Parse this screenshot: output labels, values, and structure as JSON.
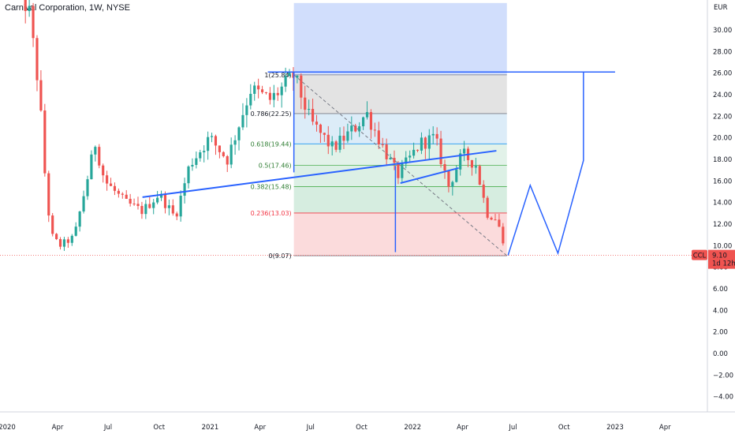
{
  "title": "Carnival Corporation, 1W, NYSE",
  "chart_data": {
    "type": "candlestick",
    "currency_label": "EUR",
    "y_range": [
      -5,
      32.5
    ],
    "y_ticks": [
      "30.00",
      "28.00",
      "26.00",
      "24.00",
      "22.00",
      "20.00",
      "18.00",
      "16.00",
      "14.00",
      "12.00",
      "10.00",
      "8.00",
      "6.00",
      "4.00",
      "2.00",
      "0.00",
      "−2.00",
      "−4.00"
    ],
    "x_range": [
      "2020-01-01",
      "2023-06-15"
    ],
    "x_ticks": [
      {
        "date": "2020-01-01",
        "label": "2020"
      },
      {
        "date": "2020-04-01",
        "label": "Apr"
      },
      {
        "date": "2020-07-01",
        "label": "Jul"
      },
      {
        "date": "2020-10-01",
        "label": "Oct"
      },
      {
        "date": "2021-01-01",
        "label": "2021"
      },
      {
        "date": "2021-04-01",
        "label": "Apr"
      },
      {
        "date": "2021-07-01",
        "label": "Jul"
      },
      {
        "date": "2021-10-01",
        "label": "Oct"
      },
      {
        "date": "2022-01-01",
        "label": "2022"
      },
      {
        "date": "2022-04-01",
        "label": "Apr"
      },
      {
        "date": "2022-07-01",
        "label": "Jul"
      },
      {
        "date": "2022-10-01",
        "label": "Oct"
      },
      {
        "date": "2023-01-01",
        "label": "2023"
      },
      {
        "date": "2023-04-01",
        "label": "Apr"
      }
    ],
    "close_anchors": [
      {
        "date": "2020-01-20",
        "value": 34.5
      },
      {
        "date": "2020-02-10",
        "value": 31.5
      },
      {
        "date": "2020-02-28",
        "value": 24.2
      },
      {
        "date": "2020-03-10",
        "value": 16.0
      },
      {
        "date": "2020-03-20",
        "value": 11.0
      },
      {
        "date": "2020-04-05",
        "value": 10.0
      },
      {
        "date": "2020-05-01",
        "value": 10.8
      },
      {
        "date": "2020-06-08",
        "value": 19.5
      },
      {
        "date": "2020-06-25",
        "value": 16.0
      },
      {
        "date": "2020-08-01",
        "value": 14.0
      },
      {
        "date": "2020-09-01",
        "value": 13.2
      },
      {
        "date": "2020-10-01",
        "value": 14.8
      },
      {
        "date": "2020-10-30",
        "value": 12.6
      },
      {
        "date": "2020-11-25",
        "value": 17.5
      },
      {
        "date": "2020-12-31",
        "value": 20.0
      },
      {
        "date": "2021-02-01",
        "value": 18.0
      },
      {
        "date": "2021-03-15",
        "value": 24.5
      },
      {
        "date": "2021-04-20",
        "value": 23.5
      },
      {
        "date": "2021-06-01",
        "value": 25.8
      },
      {
        "date": "2021-07-01",
        "value": 21.5
      },
      {
        "date": "2021-08-10",
        "value": 19.0
      },
      {
        "date": "2021-09-20",
        "value": 21.0
      },
      {
        "date": "2021-10-10",
        "value": 22.3
      },
      {
        "date": "2021-11-05",
        "value": 19.5
      },
      {
        "date": "2021-12-05",
        "value": 16.5
      },
      {
        "date": "2022-01-15",
        "value": 19.5
      },
      {
        "date": "2022-02-10",
        "value": 20.0
      },
      {
        "date": "2022-03-07",
        "value": 15.5
      },
      {
        "date": "2022-04-01",
        "value": 18.5
      },
      {
        "date": "2022-04-25",
        "value": 17.5
      },
      {
        "date": "2022-05-15",
        "value": 13.0
      },
      {
        "date": "2022-06-03",
        "value": 12.5
      },
      {
        "date": "2022-06-17",
        "value": 9.1
      }
    ],
    "fibonacci": {
      "levels": [
        {
          "label": "1(25.84)",
          "value": 25.84
        },
        {
          "label": "0.786(22.25)",
          "value": 22.25
        },
        {
          "label": "0.618(19.44)",
          "value": 19.44
        },
        {
          "label": "0.5(17.46)",
          "value": 17.46
        },
        {
          "label": "0.382(15.48)",
          "value": 15.48
        },
        {
          "label": "0.236(13.03)",
          "value": 13.03
        },
        {
          "label": "0(9.07)",
          "value": 9.07
        }
      ],
      "start_date": "2021-06-01",
      "end_date": "2022-06-20"
    },
    "projection_polyline": [
      {
        "date": "2022-06-22",
        "value": 9.1
      },
      {
        "date": "2022-08-01",
        "value": 15.6
      },
      {
        "date": "2022-09-20",
        "value": 9.3
      },
      {
        "date": "2022-11-05",
        "value": 17.9
      },
      {
        "date": "2022-11-05",
        "value": 26.1
      }
    ],
    "horizontal_line": {
      "from": "2021-04-15",
      "to": "2023-01-01",
      "value": 26.1
    },
    "trend_lines": [
      [
        {
          "date": "2020-09-01",
          "value": 14.5
        },
        {
          "date": "2022-06-01",
          "value": 18.8
        }
      ],
      [
        {
          "date": "2021-12-10",
          "value": 15.8
        },
        {
          "date": "2022-03-25",
          "value": 17.2
        }
      ]
    ],
    "vertical_lines": [
      {
        "date": "2021-06-01",
        "from": 16.8,
        "to": 26.1
      },
      {
        "date": "2021-12-01",
        "from": 9.4,
        "to": 17.4
      }
    ],
    "diagonal_dashed": [
      {
        "date": "2021-06-01",
        "value": 25.84
      },
      {
        "date": "2022-06-20",
        "value": 9.07
      }
    ],
    "top_zone": {
      "from_date": "2021-06-01",
      "to_date": "2022-06-20",
      "from_value": 25.84,
      "to_value": 32.5
    },
    "last_price": {
      "symbol": "CCL",
      "value": "9.10",
      "countdown": "1d 12h",
      "level": 9.1
    },
    "colors": {
      "up": "#26a69a",
      "down": "#ef5350",
      "drawing": "#2962ff",
      "zone_blue": "#cfdcfc",
      "fib_gray": "#e0e0e0",
      "fib_blue": "#d8eaf7",
      "fib_green": "#d6ede0",
      "fib_red": "#fbd7d8"
    }
  }
}
